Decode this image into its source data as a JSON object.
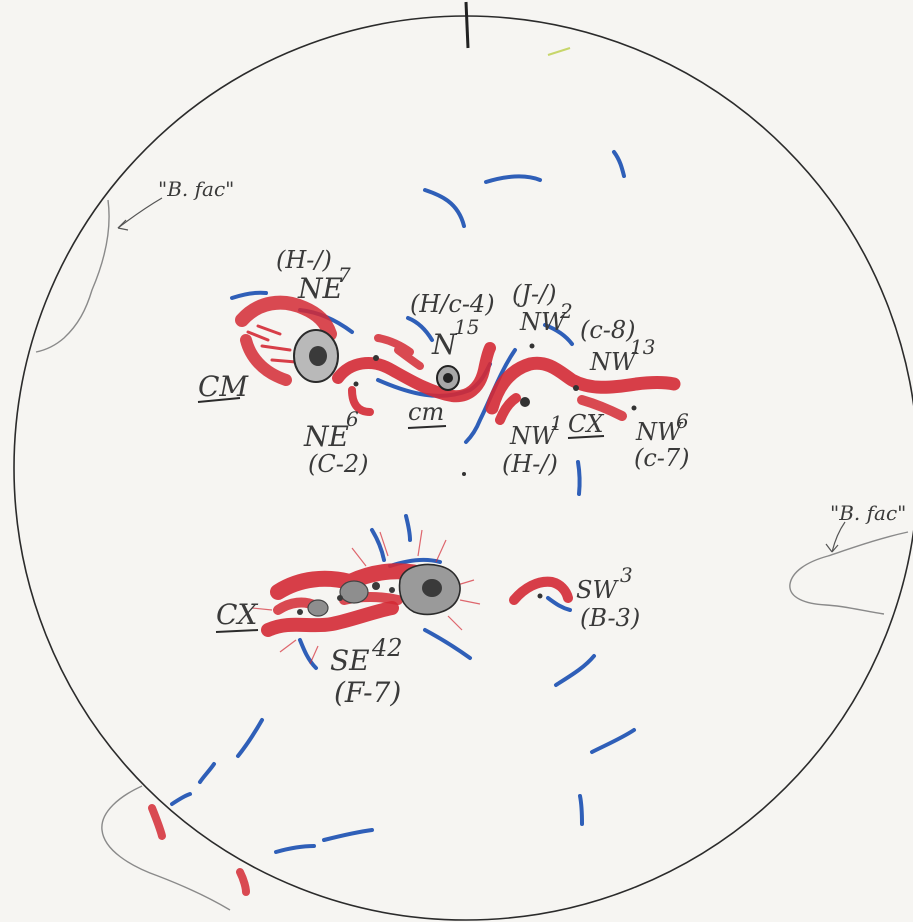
{
  "colors": {
    "paper": "#f6f5f2",
    "pencil": "#2b2b2b",
    "red_pencil": "#d42a35",
    "blue_pencil": "#2f5fb8",
    "umbra": "#3a3a3a",
    "penumbra": "#9a9a9a"
  },
  "labels": {
    "bfac_left": "\"B. fac\"",
    "bfac_right": "\"B. fac\"",
    "ne7_class": "(H-/)",
    "ne7_name": "NE",
    "ne7_num": "7",
    "ne6_name": "NE",
    "ne6_num": "6",
    "ne6_class": "(C-2)",
    "n15_class": "(H/c-4)",
    "n15_name": "N",
    "n15_num": "15",
    "nw2_class": "(J-/)",
    "nw2_name": "NW",
    "nw2_num": "2",
    "nw13_class": "(c-8)",
    "nw13_name": "NW",
    "nw13_num": "13",
    "nw1_name": "NW",
    "nw1_num": "1",
    "nw1_class": "(H-/)",
    "nw6_name": "NW",
    "nw6_num": "6",
    "nw6_class": "(c-7)",
    "sw3_name": "SW",
    "sw3_num": "3",
    "sw3_class": "(B-3)",
    "se42_name": "SE",
    "se42_num": "42",
    "se42_class": "(F-7)",
    "cm_left": "CM",
    "cm_center": "cm",
    "cx_right": "CX",
    "cx_lower": "CX"
  }
}
